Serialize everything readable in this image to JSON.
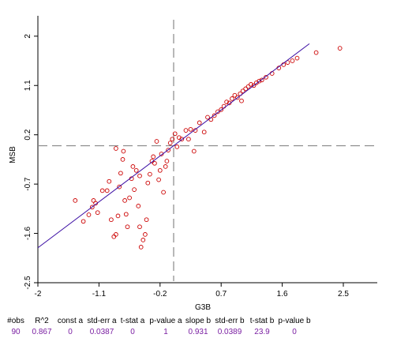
{
  "chart_data": {
    "type": "scatter",
    "xlabel": "G3B",
    "ylabel": "MSB",
    "xlim": [
      -2,
      3.0
    ],
    "ylim": [
      -2.5,
      2.3
    ],
    "xticks": [
      "-2",
      "-1.1",
      "-0.2",
      "0.7",
      "1.6",
      "2.5"
    ],
    "xtick_values": [
      -2,
      -1.1,
      -0.2,
      0.7,
      1.6,
      2.5
    ],
    "yticks": [
      "-2.5",
      "-1.6",
      "-0.7",
      "0.2",
      "1.1",
      "2"
    ],
    "ytick_values": [
      -2.5,
      -1.6,
      -0.7,
      0.2,
      1.1,
      2
    ],
    "fit_line": {
      "slope": 0.931,
      "intercept": 0,
      "x_range": [
        -2,
        2.0
      ]
    },
    "mean_lines": {
      "x": 0,
      "y": 0
    },
    "colors": {
      "points": "#cc0000",
      "fit": "#3a0ca3",
      "mean_lines": "#888888"
    },
    "points": [
      [
        -1.45,
        -1.0
      ],
      [
        -1.33,
        -1.38
      ],
      [
        -1.25,
        -1.26
      ],
      [
        -1.2,
        -1.12
      ],
      [
        -1.18,
        -1.0
      ],
      [
        -1.15,
        -1.05
      ],
      [
        -1.12,
        -1.22
      ],
      [
        -1.05,
        -0.82
      ],
      [
        -0.98,
        -0.82
      ],
      [
        -0.95,
        -0.65
      ],
      [
        -0.92,
        -1.35
      ],
      [
        -0.88,
        -1.66
      ],
      [
        -0.85,
        -1.62
      ],
      [
        -0.82,
        -1.28
      ],
      [
        -0.8,
        -0.75
      ],
      [
        -0.78,
        -0.5
      ],
      [
        -0.75,
        -0.25
      ],
      [
        -0.74,
        -0.1
      ],
      [
        -0.72,
        -1.0
      ],
      [
        -0.7,
        -1.25
      ],
      [
        -0.68,
        -1.48
      ],
      [
        -0.65,
        -0.95
      ],
      [
        -0.62,
        -0.6
      ],
      [
        -0.6,
        -0.38
      ],
      [
        -0.58,
        -0.8
      ],
      [
        -0.55,
        -0.45
      ],
      [
        -0.52,
        -1.1
      ],
      [
        -0.5,
        -1.48
      ],
      [
        -0.48,
        -1.85
      ],
      [
        -0.45,
        -1.72
      ],
      [
        -0.42,
        -1.62
      ],
      [
        -0.4,
        -1.35
      ],
      [
        -0.38,
        -0.68
      ],
      [
        -0.35,
        -0.52
      ],
      [
        -0.32,
        -0.28
      ],
      [
        -0.3,
        -0.2
      ],
      [
        -0.28,
        -0.32
      ],
      [
        -0.25,
        0.08
      ],
      [
        -0.22,
        -0.62
      ],
      [
        -0.2,
        -0.45
      ],
      [
        -0.18,
        -0.15
      ],
      [
        -0.15,
        -0.85
      ],
      [
        -0.12,
        -0.38
      ],
      [
        -0.1,
        -0.28
      ],
      [
        -0.08,
        -0.08
      ],
      [
        -0.05,
        0.05
      ],
      [
        -0.02,
        0.12
      ],
      [
        0.02,
        0.22
      ],
      [
        0.05,
        -0.02
      ],
      [
        0.08,
        0.15
      ],
      [
        0.12,
        0.12
      ],
      [
        0.18,
        0.28
      ],
      [
        0.22,
        0.12
      ],
      [
        0.25,
        0.3
      ],
      [
        0.32,
        0.28
      ],
      [
        0.38,
        0.42
      ],
      [
        0.45,
        0.25
      ],
      [
        0.5,
        0.52
      ],
      [
        0.55,
        0.48
      ],
      [
        0.6,
        0.55
      ],
      [
        0.65,
        0.62
      ],
      [
        0.7,
        0.66
      ],
      [
        0.74,
        0.72
      ],
      [
        0.78,
        0.8
      ],
      [
        0.82,
        0.78
      ],
      [
        0.86,
        0.86
      ],
      [
        0.9,
        0.92
      ],
      [
        0.94,
        0.88
      ],
      [
        0.98,
        0.95
      ],
      [
        1.02,
        1.0
      ],
      [
        1.06,
        1.04
      ],
      [
        1.1,
        1.08
      ],
      [
        1.14,
        1.12
      ],
      [
        1.18,
        1.1
      ],
      [
        1.22,
        1.15
      ],
      [
        1.26,
        1.18
      ],
      [
        1.3,
        1.2
      ],
      [
        1.36,
        1.25
      ],
      [
        1.45,
        1.32
      ],
      [
        1.55,
        1.42
      ],
      [
        1.62,
        1.48
      ],
      [
        1.68,
        1.52
      ],
      [
        1.75,
        1.55
      ],
      [
        1.82,
        1.6
      ],
      [
        2.1,
        1.7
      ],
      [
        2.45,
        1.78
      ],
      [
        -0.85,
        -0.05
      ],
      [
        -0.5,
        -0.55
      ],
      [
        0.3,
        -0.1
      ],
      [
        1.0,
        0.82
      ]
    ]
  },
  "stats": {
    "headers": [
      "#obs",
      "R^2",
      "const a",
      "std-err a",
      "t-stat a",
      "p-value a",
      "slope b",
      "std-err b",
      "t-stat b",
      "p-value b"
    ],
    "values": [
      "90",
      "0.867",
      "0",
      "0.0387",
      "0",
      "1",
      "0.931",
      "0.0389",
      "23.9",
      "0"
    ]
  }
}
